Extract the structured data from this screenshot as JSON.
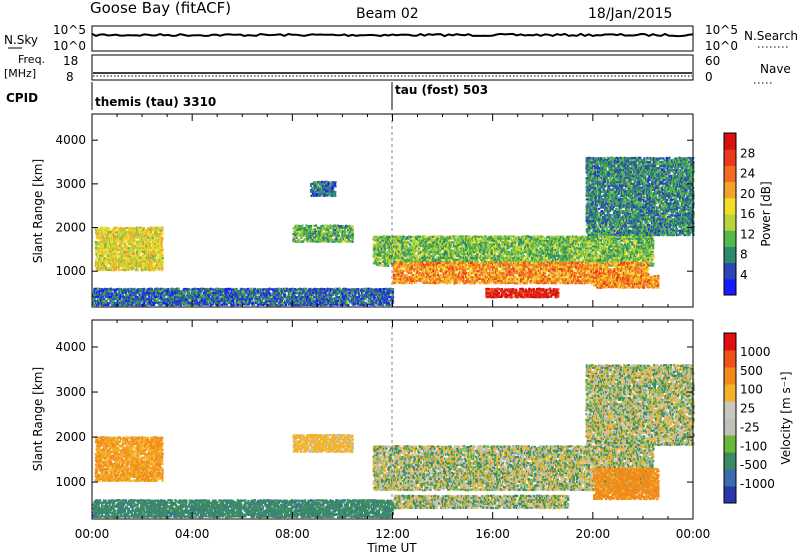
{
  "header": {
    "station": "Goose Bay (fitACF)",
    "beam": "Beam 02",
    "date": "18/Jan/2015"
  },
  "strip": {
    "nsky_label": "N.Sky",
    "nsky_ticks": [
      "10^5",
      "10^0"
    ],
    "nsearch_label": "N.Search",
    "nsearch_ticks": [
      "10^5",
      "10^0"
    ],
    "freq_label": "Freq.",
    "freq_unit": "[MHz]",
    "freq_ticks": [
      "18",
      "8"
    ],
    "nave_label": "Nave",
    "nave_ticks": [
      "60",
      "0"
    ],
    "cpid_label": "CPID"
  },
  "cpid_segments": [
    {
      "start_hour": 0,
      "label": "themis (tau) 3310"
    },
    {
      "start_hour": 12,
      "label": "tau (fost) 503"
    }
  ],
  "colors": {
    "power_scale": [
      "#1a1aff",
      "#2c46b4",
      "#2f8a6a",
      "#55b84a",
      "#b8d43a",
      "#f2dd2a",
      "#f2a32a",
      "#f26a22",
      "#e83a1a",
      "#d81010"
    ],
    "velocity_scale": [
      "#2a36a8",
      "#3a6ab0",
      "#3a8a64",
      "#6ab83a",
      "#c0c0b8",
      "#c8c8c0",
      "#f2b22a",
      "#f28a1a",
      "#f0501a",
      "#e01010"
    ],
    "line_black": "#000000"
  },
  "chart_data": [
    {
      "type": "heatmap",
      "title": "",
      "parameter": "Power",
      "ylabel": "Slant Range [km]",
      "xlabel": "",
      "x_range_hours": [
        0,
        24
      ],
      "ylim": [
        180,
        4600
      ],
      "yticks": [
        "1000",
        "2000",
        "3000",
        "4000"
      ],
      "colorbar": {
        "label": "Power [dB]",
        "range": [
          0,
          32
        ],
        "ticks": [
          "4",
          "8",
          "12",
          "16",
          "20",
          "24",
          "28"
        ]
      },
      "regions": [
        {
          "t0": 0.1,
          "t1": 2.8,
          "r0": 1000,
          "r1": 2000,
          "value": 17
        },
        {
          "t0": 8.0,
          "t1": 10.4,
          "r0": 1650,
          "r1": 2050,
          "value": 11
        },
        {
          "t0": 8.7,
          "t1": 9.7,
          "r0": 2700,
          "r1": 3050,
          "value": 7
        },
        {
          "t0": 11.2,
          "t1": 22.4,
          "r0": 1100,
          "r1": 1800,
          "value": 12
        },
        {
          "t0": 12.0,
          "t1": 22.2,
          "r0": 700,
          "r1": 1200,
          "value": 22
        },
        {
          "t0": 15.7,
          "t1": 18.6,
          "r0": 380,
          "r1": 600,
          "value": 30
        },
        {
          "t0": 20.0,
          "t1": 22.6,
          "r0": 600,
          "r1": 900,
          "value": 22
        },
        {
          "t0": 19.7,
          "t1": 24.0,
          "r0": 1800,
          "r1": 3600,
          "value": 8
        },
        {
          "t0": 0.0,
          "t1": 12.0,
          "r0": 200,
          "r1": 600,
          "value": 6
        }
      ]
    },
    {
      "type": "heatmap",
      "title": "",
      "parameter": "Velocity",
      "ylabel": "Slant Range [km]",
      "xlabel": "Time UT",
      "x_range_hours": [
        0,
        24
      ],
      "xticks": [
        "00:00",
        "04:00",
        "08:00",
        "12:00",
        "16:00",
        "20:00",
        "00:00"
      ],
      "ylim": [
        180,
        4600
      ],
      "yticks": [
        "1000",
        "2000",
        "3000",
        "4000"
      ],
      "colorbar": {
        "label": "Velocity [m s⁻¹]",
        "ticks": [
          "1000",
          "500",
          "100",
          "25",
          "-25",
          "-100",
          "-500",
          "-1000"
        ]
      },
      "regions": [
        {
          "t0": 0.1,
          "t1": 2.8,
          "r0": 1000,
          "r1": 2000,
          "value": -300
        },
        {
          "t0": 8.0,
          "t1": 10.4,
          "r0": 1650,
          "r1": 2050,
          "value": -150
        },
        {
          "t0": 11.2,
          "t1": 22.4,
          "r0": 800,
          "r1": 1800,
          "value": 0
        },
        {
          "t0": 12.0,
          "t1": 19.0,
          "r0": 400,
          "r1": 700,
          "value": 10
        },
        {
          "t0": 20.0,
          "t1": 22.6,
          "r0": 600,
          "r1": 1300,
          "value": -400
        },
        {
          "t0": 19.7,
          "t1": 24.0,
          "r0": 1800,
          "r1": 3600,
          "value": 0
        },
        {
          "t0": 0.0,
          "t1": 12.0,
          "r0": 200,
          "r1": 600,
          "value": 200
        }
      ]
    }
  ]
}
